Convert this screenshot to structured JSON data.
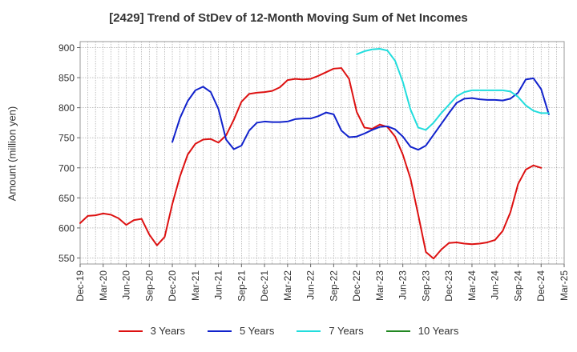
{
  "chart_data": {
    "type": "line",
    "title": "[2429]  Trend of StDev of 12-Month Moving Sum of Net Incomes",
    "ylabel": "Amount (million yen)",
    "xlabel": "",
    "ylim": [
      540,
      910
    ],
    "yticks": [
      550,
      600,
      650,
      700,
      750,
      800,
      850,
      900
    ],
    "x_tick_labels": [
      "Dec-19",
      "Mar-20",
      "Jun-20",
      "Sep-20",
      "Dec-20",
      "Mar-21",
      "Jun-21",
      "Sep-21",
      "Dec-21",
      "Mar-22",
      "Jun-22",
      "Sep-22",
      "Dec-22",
      "Mar-23",
      "Jun-23",
      "Sep-23",
      "Dec-23",
      "Mar-24",
      "Jun-24",
      "Sep-24",
      "Dec-24",
      "Mar-25"
    ],
    "grid": true,
    "legend_position": "bottom",
    "series": [
      {
        "name": "3 Years",
        "color": "#dd1111",
        "start_index": 0,
        "values": [
          608,
          620,
          621,
          624,
          622,
          616,
          605,
          613,
          615,
          589,
          571,
          585,
          640,
          686,
          722,
          740,
          747,
          748,
          742,
          754,
          780,
          810,
          823,
          825,
          826,
          828,
          834,
          846,
          848,
          847,
          848,
          853,
          859,
          865,
          866,
          848,
          793,
          767,
          765,
          772,
          768,
          752,
          722,
          682,
          622,
          560,
          549,
          564,
          575,
          576,
          574,
          573,
          574,
          576,
          580,
          595,
          626,
          673,
          697,
          704,
          700
        ]
      },
      {
        "name": "5 Years",
        "color": "#1122cc",
        "start_index": 12,
        "values": [
          743,
          783,
          811,
          829,
          835,
          826,
          798,
          747,
          731,
          737,
          762,
          775,
          777,
          776,
          776,
          777,
          781,
          782,
          782,
          786,
          792,
          789,
          762,
          751,
          752,
          757,
          763,
          768,
          769,
          764,
          752,
          735,
          730,
          737,
          755,
          773,
          791,
          808,
          815,
          816,
          814,
          813,
          813,
          812,
          815,
          825,
          847,
          849,
          831,
          789
        ]
      },
      {
        "name": "7 Years",
        "color": "#22dddd",
        "start_index": 36,
        "values": [
          889,
          894,
          897,
          898,
          895,
          878,
          843,
          797,
          767,
          763,
          775,
          791,
          805,
          819,
          826,
          829,
          829,
          829,
          829,
          829,
          827,
          818,
          804,
          795,
          791,
          791
        ]
      },
      {
        "name": "10 Years",
        "color": "#228822",
        "start_index": 0,
        "values": []
      }
    ]
  }
}
